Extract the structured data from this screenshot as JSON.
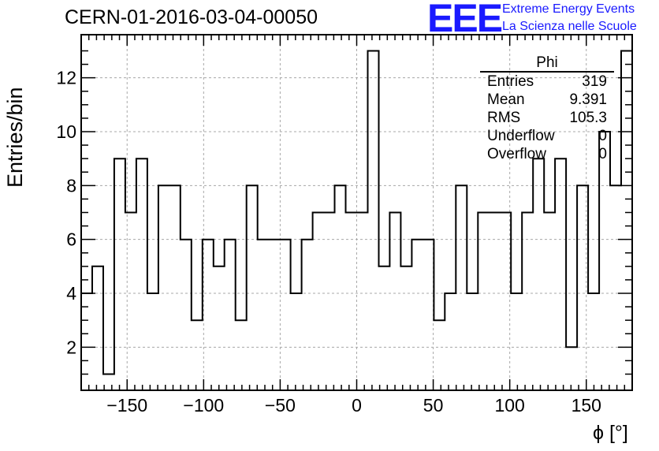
{
  "header": {
    "title": "CERN-01-2016-03-04-00050",
    "logo_mark": "EEE",
    "logo_line1": "Extreme Energy Events",
    "logo_line2": "La Scienza nelle Scuole"
  },
  "stats_box": {
    "title": "Phi",
    "rows": [
      {
        "label": "Entries",
        "value": "319"
      },
      {
        "label": "Mean",
        "value": "9.391"
      },
      {
        "label": "RMS",
        "value": "105.3"
      },
      {
        "label": "Underflow",
        "value": "0"
      },
      {
        "label": "Overflow",
        "value": "0"
      }
    ]
  },
  "chart_data": {
    "type": "bar",
    "title": "CERN-01-2016-03-04-00050",
    "xlabel": "ϕ [°]",
    "ylabel": "Entries/bin",
    "xlim": [
      -180,
      180
    ],
    "ylim": [
      0.4,
      13.6
    ],
    "x_ticks": [
      -150,
      -100,
      -50,
      0,
      50,
      100,
      150
    ],
    "x_tick_labels": [
      "−150",
      "−100",
      "−50",
      "0",
      "50",
      "100",
      "150"
    ],
    "y_ticks": [
      2,
      4,
      6,
      8,
      10,
      12
    ],
    "y_tick_labels": [
      "2",
      "4",
      "6",
      "8",
      "10",
      "12"
    ],
    "grid": true,
    "bins": {
      "start": -180,
      "width": 7.2,
      "values": [
        4,
        5,
        1,
        9,
        7,
        9,
        4,
        8,
        8,
        6,
        3,
        6,
        5,
        6,
        3,
        8,
        6,
        6,
        6,
        4,
        6,
        7,
        7,
        8,
        7,
        7,
        13,
        5,
        7,
        5,
        6,
        6,
        3,
        4,
        8,
        4,
        7,
        7,
        7,
        4,
        7,
        9,
        7,
        9,
        2,
        8,
        4,
        10,
        8,
        13
      ]
    }
  }
}
